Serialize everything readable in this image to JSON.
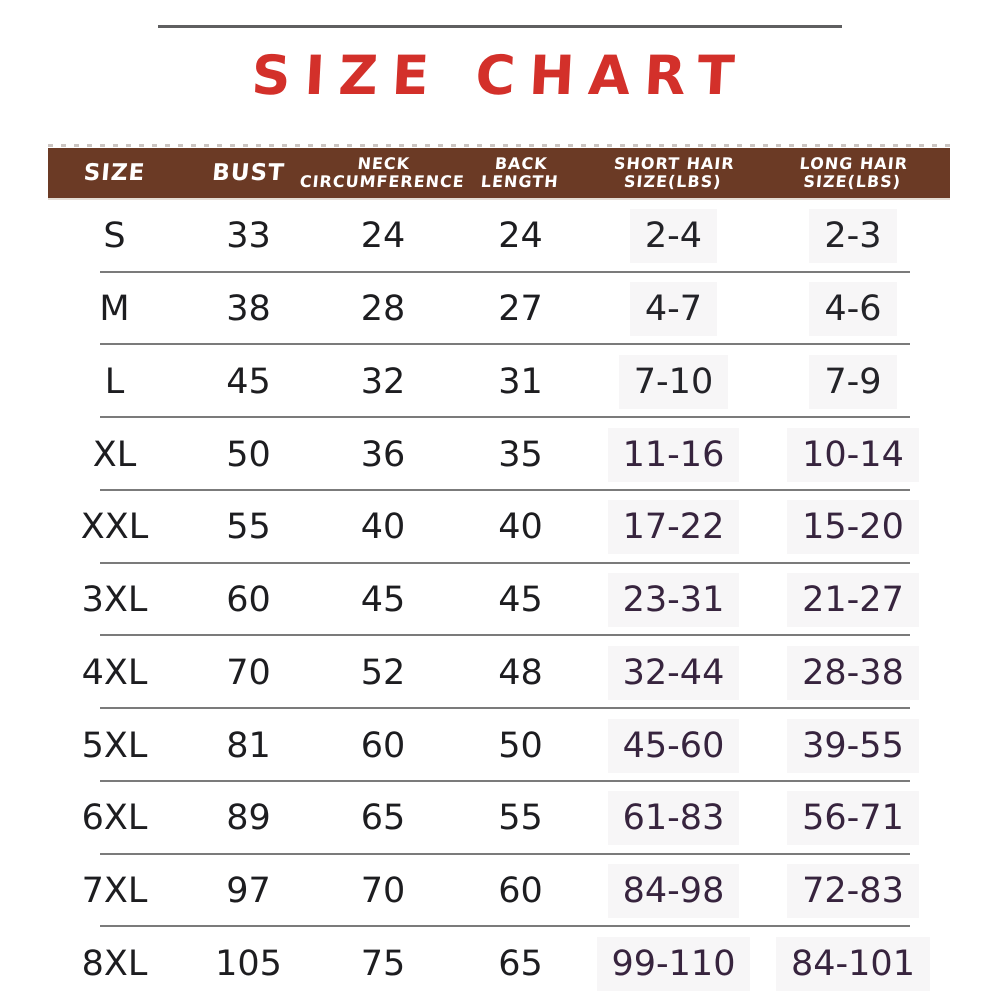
{
  "title": "SIZE CHART",
  "colors": {
    "title_red": "#d3302a",
    "header_brown": "#6b3a25",
    "header_text": "#ffffff",
    "value_black": "#1d1d20",
    "value_purple": "#37243e",
    "separator_gray": "#7b7b7b",
    "chip_background": "#f7f6f7"
  },
  "table": {
    "headers": [
      "SIZE",
      "BUST",
      "NECK\nCIRCUMFERENCE",
      "BACK\nLENGTH",
      "SHORT HAIR\nSIZE(LBS)",
      "LONG HAIR\nSIZE(LBS)"
    ],
    "rows": [
      {
        "size": "S",
        "bust": "33",
        "neck": "24",
        "back": "24",
        "short": "2-4",
        "long": "2-3"
      },
      {
        "size": "M",
        "bust": "38",
        "neck": "28",
        "back": "27",
        "short": "4-7",
        "long": "4-6"
      },
      {
        "size": "L",
        "bust": "45",
        "neck": "32",
        "back": "31",
        "short": "7-10",
        "long": "7-9"
      },
      {
        "size": "XL",
        "bust": "50",
        "neck": "36",
        "back": "35",
        "short": "11-16",
        "long": "10-14"
      },
      {
        "size": "XXL",
        "bust": "55",
        "neck": "40",
        "back": "40",
        "short": "17-22",
        "long": "15-20"
      },
      {
        "size": "3XL",
        "bust": "60",
        "neck": "45",
        "back": "45",
        "short": "23-31",
        "long": "21-27"
      },
      {
        "size": "4XL",
        "bust": "70",
        "neck": "52",
        "back": "48",
        "short": "32-44",
        "long": "28-38"
      },
      {
        "size": "5XL",
        "bust": "81",
        "neck": "60",
        "back": "50",
        "short": "45-60",
        "long": "39-55"
      },
      {
        "size": "6XL",
        "bust": "89",
        "neck": "65",
        "back": "55",
        "short": "61-83",
        "long": "56-71"
      },
      {
        "size": "7XL",
        "bust": "97",
        "neck": "70",
        "back": "60",
        "short": "84-98",
        "long": "72-83"
      },
      {
        "size": "8XL",
        "bust": "105",
        "neck": "75",
        "back": "65",
        "short": "99-110",
        "long": "84-101"
      }
    ]
  },
  "chart_data": {
    "type": "table",
    "title": "SIZE CHART",
    "columns": [
      "SIZE",
      "BUST",
      "NECK CIRCUMFERENCE",
      "BACK LENGTH",
      "SHORT HAIR SIZE(LBS)",
      "LONG HAIR SIZE(LBS)"
    ],
    "rows": [
      [
        "S",
        33,
        24,
        24,
        "2-4",
        "2-3"
      ],
      [
        "M",
        38,
        28,
        27,
        "4-7",
        "4-6"
      ],
      [
        "L",
        45,
        32,
        31,
        "7-10",
        "7-9"
      ],
      [
        "XL",
        50,
        36,
        35,
        "11-16",
        "10-14"
      ],
      [
        "XXL",
        55,
        40,
        40,
        "17-22",
        "15-20"
      ],
      [
        "3XL",
        60,
        45,
        45,
        "23-31",
        "21-27"
      ],
      [
        "4XL",
        70,
        52,
        48,
        "32-44",
        "28-38"
      ],
      [
        "5XL",
        81,
        60,
        50,
        "45-60",
        "39-55"
      ],
      [
        "6XL",
        89,
        65,
        55,
        "61-83",
        "56-71"
      ],
      [
        "7XL",
        97,
        70,
        60,
        "84-98",
        "72-83"
      ],
      [
        "8XL",
        105,
        75,
        65,
        "99-110",
        "84-101"
      ]
    ]
  }
}
